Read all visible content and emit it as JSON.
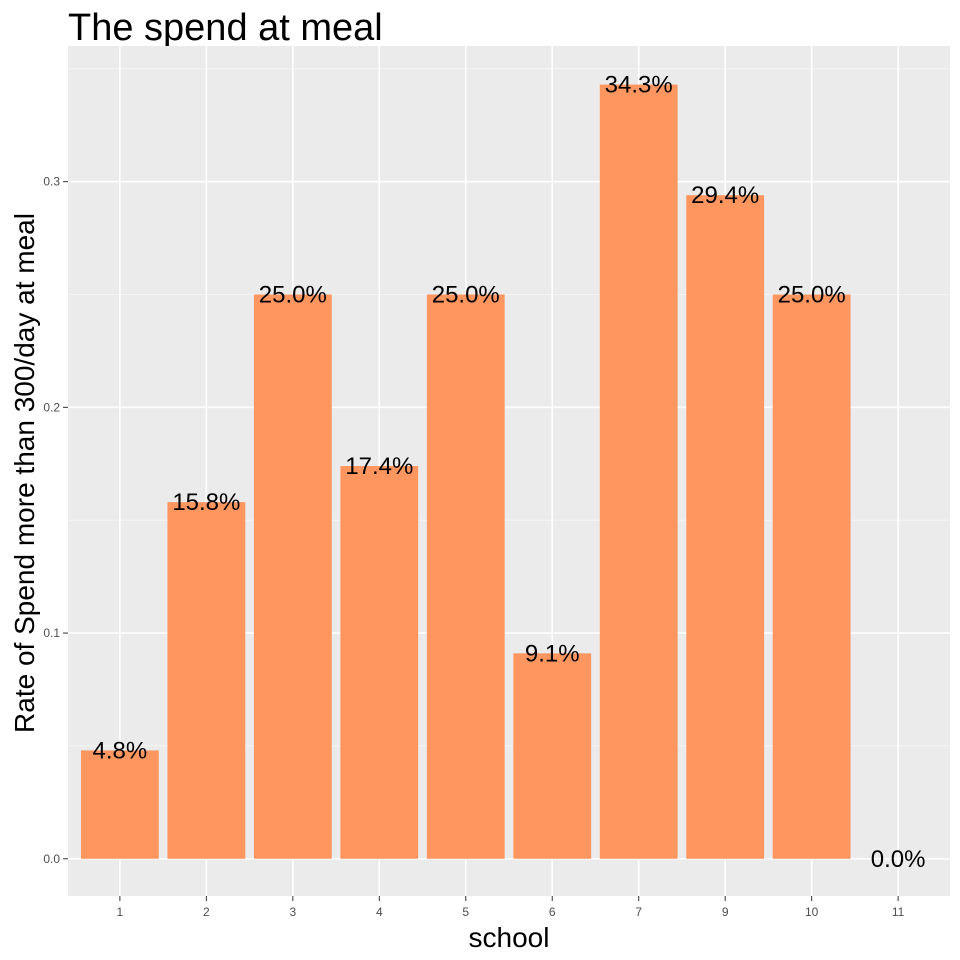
{
  "chart_data": {
    "type": "bar",
    "title": "The spend at meal",
    "xlabel": "school",
    "ylabel": "Rate of Spend more than 300/day at meal",
    "categories": [
      "1",
      "2",
      "3",
      "4",
      "5",
      "6",
      "7",
      "9",
      "10",
      "11"
    ],
    "values": [
      0.048,
      0.158,
      0.25,
      0.174,
      0.25,
      0.091,
      0.343,
      0.294,
      0.25,
      0.0
    ],
    "labels": [
      "4.8%",
      "15.8%",
      "25.0%",
      "17.4%",
      "25.0%",
      "9.1%",
      "34.3%",
      "29.4%",
      "25.0%",
      "0.0%"
    ],
    "yticks": [
      0.0,
      0.1,
      0.2,
      0.3
    ],
    "ytick_labels": [
      "0.0",
      "0.1",
      "0.2",
      "0.3"
    ],
    "ylim": [
      -0.0165,
      0.3601
    ],
    "grid": true,
    "legend": "none",
    "colors": {
      "bar": "#ff9660",
      "panel": "#ebebeb",
      "grid_major": "#ffffff",
      "grid_minor": "#f5f5f5",
      "tick": "#333333"
    }
  }
}
